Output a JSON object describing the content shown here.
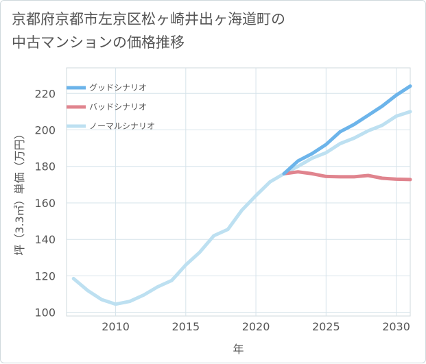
{
  "title_line1": "京都府京都市左京区松ヶ崎井出ヶ海道町の",
  "title_line2": "中古マンションの価格推移",
  "chart_data": {
    "type": "line",
    "xlabel": "年",
    "ylabel": "坪（3.3㎡）単価（万円）",
    "xlim": [
      2006.5,
      2031
    ],
    "ylim": [
      98,
      234
    ],
    "xticks": [
      2010,
      2015,
      2020,
      2025,
      2030
    ],
    "yticks": [
      100,
      120,
      140,
      160,
      180,
      200,
      220
    ],
    "grid": true,
    "legend_position": "top-left",
    "series": [
      {
        "name": "グッドシナリオ",
        "color": "#6cb4ea",
        "x": [
          2022,
          2023,
          2024,
          2025,
          2026,
          2027,
          2028,
          2029,
          2030,
          2031
        ],
        "y": [
          176,
          183,
          187,
          192,
          199,
          203,
          208,
          213,
          219,
          224
        ]
      },
      {
        "name": "バッドシナリオ",
        "color": "#e0848e",
        "x": [
          2022,
          2023,
          2024,
          2025,
          2026,
          2027,
          2028,
          2029,
          2030,
          2031
        ],
        "y": [
          176,
          177,
          176,
          174.5,
          174.3,
          174.3,
          175,
          173.5,
          173,
          172.8
        ]
      },
      {
        "name": "ノーマルシナリオ",
        "color": "#bde0f1",
        "x": [
          2007,
          2008,
          2009,
          2010,
          2011,
          2012,
          2013,
          2014,
          2015,
          2016,
          2017,
          2018,
          2019,
          2020,
          2021,
          2022,
          2023,
          2024,
          2025,
          2026,
          2027,
          2028,
          2029,
          2030,
          2031
        ],
        "y": [
          118.5,
          112,
          107,
          104.5,
          106,
          109.5,
          114,
          117.5,
          126,
          133,
          142,
          145.5,
          156,
          164,
          171.5,
          176,
          180,
          184.5,
          187.5,
          192.5,
          195.5,
          199.5,
          202.5,
          207.5,
          210
        ]
      }
    ]
  }
}
